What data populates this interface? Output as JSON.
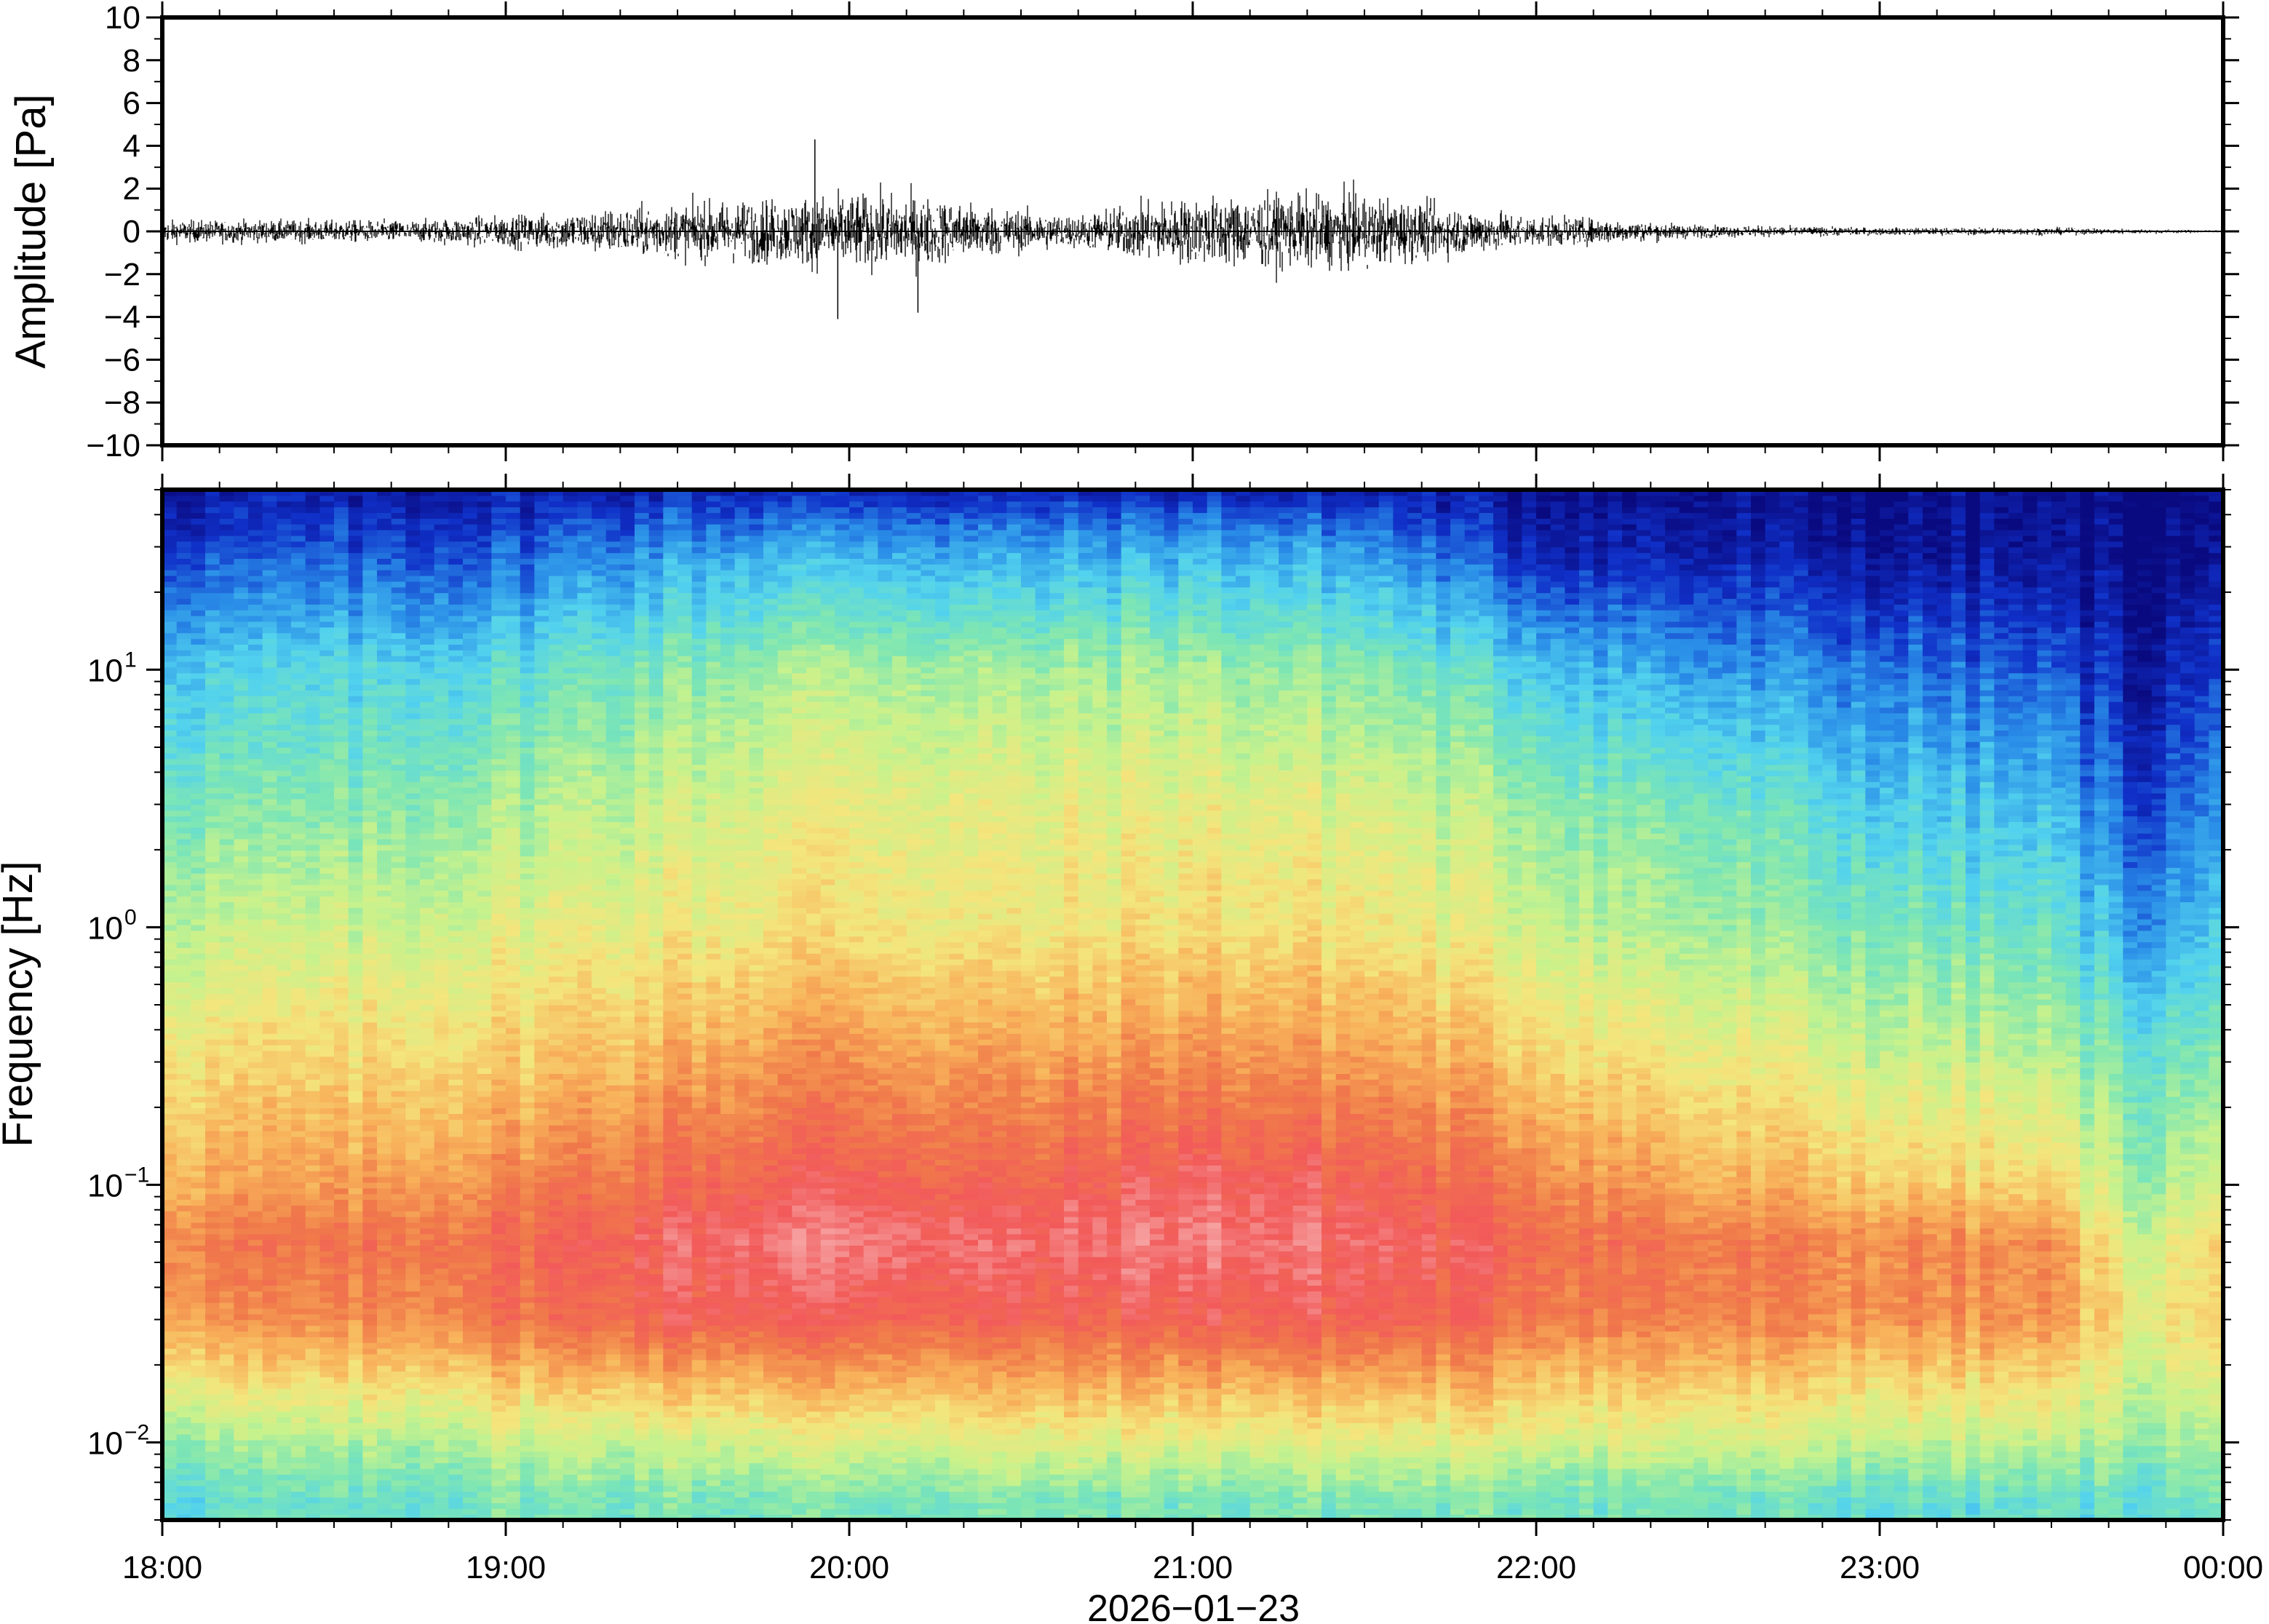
{
  "chart_data": [
    {
      "type": "line",
      "ylabel": "Amplitude [Pa]",
      "ylim": [
        -10,
        10
      ],
      "y_ticks": [
        10,
        8,
        6,
        4,
        2,
        0,
        -2,
        -4,
        -6,
        -8,
        -10
      ],
      "y_tick_labels": [
        "10",
        "8",
        "6",
        "4",
        "2",
        "0",
        "−2",
        "−4",
        "−6",
        "−8",
        "−10"
      ],
      "xlim": [
        "18:00",
        "00:00"
      ],
      "x_ticks": [
        "18:00",
        "19:00",
        "20:00",
        "21:00",
        "22:00",
        "23:00",
        "00:00"
      ],
      "envelope": {
        "x": [
          "18:00",
          "18:45",
          "18:55",
          "19:10",
          "19:20",
          "19:30",
          "19:40",
          "19:50",
          "19:55",
          "20:10",
          "20:30",
          "20:40",
          "20:50",
          "21:00",
          "21:10",
          "21:20",
          "21:30",
          "21:45",
          "22:00",
          "22:15",
          "22:30",
          "23:00",
          "23:30",
          "23:45",
          "00:00"
        ],
        "amplitude": [
          0.9,
          0.9,
          1.2,
          1.5,
          1.9,
          2.2,
          2.5,
          2.7,
          3.0,
          3.0,
          1.7,
          1.3,
          2.3,
          2.7,
          2.9,
          3.0,
          3.0,
          2.0,
          1.3,
          0.9,
          0.5,
          0.3,
          0.3,
          0.2,
          0.1
        ]
      },
      "annotations": [
        {
          "x": "19:54",
          "y": 4.3
        },
        {
          "x": "19:58",
          "y": -4.1
        },
        {
          "x": "20:12",
          "y": -3.8
        }
      ]
    },
    {
      "type": "heatmap",
      "ylabel": "Frequency [Hz]",
      "yscale": "log",
      "ylim": [
        0.005,
        50
      ],
      "y_ticks": [
        0.01,
        0.1,
        1,
        10
      ],
      "y_tick_labels": [
        {
          "base": "10",
          "exp": "−2"
        },
        {
          "base": "10",
          "exp": "−1"
        },
        {
          "base": "10",
          "exp": "0"
        },
        {
          "base": "10",
          "exp": "1"
        }
      ],
      "xlim": [
        "18:00",
        "00:00"
      ],
      "x_ticks": [
        "18:00",
        "19:00",
        "20:00",
        "21:00",
        "22:00",
        "23:00",
        "00:00"
      ],
      "xlabel": "2026−01−23",
      "colormap": [
        "#0a0a80",
        "#1030c8",
        "#2a8ee8",
        "#52d2ee",
        "#7de6b4",
        "#c8f28c",
        "#f4e57c",
        "#f8b25a",
        "#f07a4a",
        "#f25a5a",
        "#f6a0a0"
      ],
      "intensity": {
        "times": [
          "18:00",
          "18:30",
          "19:00",
          "19:30",
          "20:00",
          "20:30",
          "21:00",
          "21:30",
          "22:00",
          "22:30",
          "23:00",
          "23:30",
          "23:45",
          "00:00"
        ],
        "freqs": [
          0.006,
          0.01,
          0.03,
          0.06,
          0.1,
          0.3,
          1,
          3,
          10,
          30,
          50
        ],
        "levels": [
          [
            0.35,
            0.45,
            0.75,
            0.8,
            0.72,
            0.62,
            0.5,
            0.4,
            0.3,
            0.12,
            0.05
          ],
          [
            0.35,
            0.45,
            0.75,
            0.8,
            0.72,
            0.62,
            0.5,
            0.4,
            0.3,
            0.12,
            0.05
          ],
          [
            0.4,
            0.5,
            0.82,
            0.85,
            0.78,
            0.65,
            0.55,
            0.46,
            0.34,
            0.14,
            0.06
          ],
          [
            0.4,
            0.52,
            0.88,
            0.92,
            0.85,
            0.72,
            0.58,
            0.52,
            0.42,
            0.22,
            0.08
          ],
          [
            0.4,
            0.55,
            0.88,
            0.97,
            0.9,
            0.77,
            0.62,
            0.58,
            0.48,
            0.25,
            0.08
          ],
          [
            0.4,
            0.55,
            0.86,
            0.92,
            0.85,
            0.72,
            0.58,
            0.55,
            0.45,
            0.22,
            0.07
          ],
          [
            0.4,
            0.55,
            0.88,
            0.96,
            0.92,
            0.77,
            0.62,
            0.57,
            0.46,
            0.25,
            0.08
          ],
          [
            0.4,
            0.55,
            0.88,
            0.92,
            0.88,
            0.74,
            0.6,
            0.54,
            0.42,
            0.22,
            0.06
          ],
          [
            0.4,
            0.55,
            0.82,
            0.86,
            0.8,
            0.66,
            0.52,
            0.45,
            0.3,
            0.08,
            0.03
          ],
          [
            0.38,
            0.52,
            0.78,
            0.8,
            0.7,
            0.58,
            0.45,
            0.38,
            0.22,
            0.05,
            0.02
          ],
          [
            0.35,
            0.5,
            0.76,
            0.78,
            0.66,
            0.52,
            0.4,
            0.3,
            0.18,
            0.03,
            0.01
          ],
          [
            0.35,
            0.48,
            0.74,
            0.75,
            0.62,
            0.48,
            0.35,
            0.26,
            0.14,
            0.02,
            0.01
          ],
          [
            0.35,
            0.45,
            0.58,
            0.52,
            0.45,
            0.38,
            0.22,
            0.12,
            0.05,
            0.01,
            0.0
          ],
          [
            0.38,
            0.45,
            0.62,
            0.62,
            0.52,
            0.4,
            0.28,
            0.2,
            0.1,
            0.01,
            0.0
          ]
        ]
      }
    }
  ]
}
